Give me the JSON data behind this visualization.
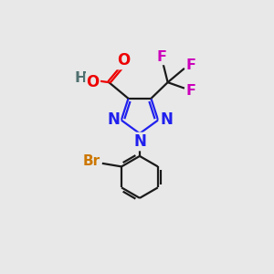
{
  "bg_color": "#e8e8e8",
  "bond_color": "#1a1a1a",
  "N_color": "#2020ee",
  "O_color": "#ee0000",
  "F_color": "#cc00bb",
  "Br_color": "#cc7700",
  "H_color": "#507070",
  "line_width": 1.6,
  "font_size": 10.5,
  "fig_size": [
    3.0,
    3.0
  ],
  "dpi": 100,
  "xlim": [
    0,
    10
  ],
  "ylim": [
    0,
    10
  ]
}
